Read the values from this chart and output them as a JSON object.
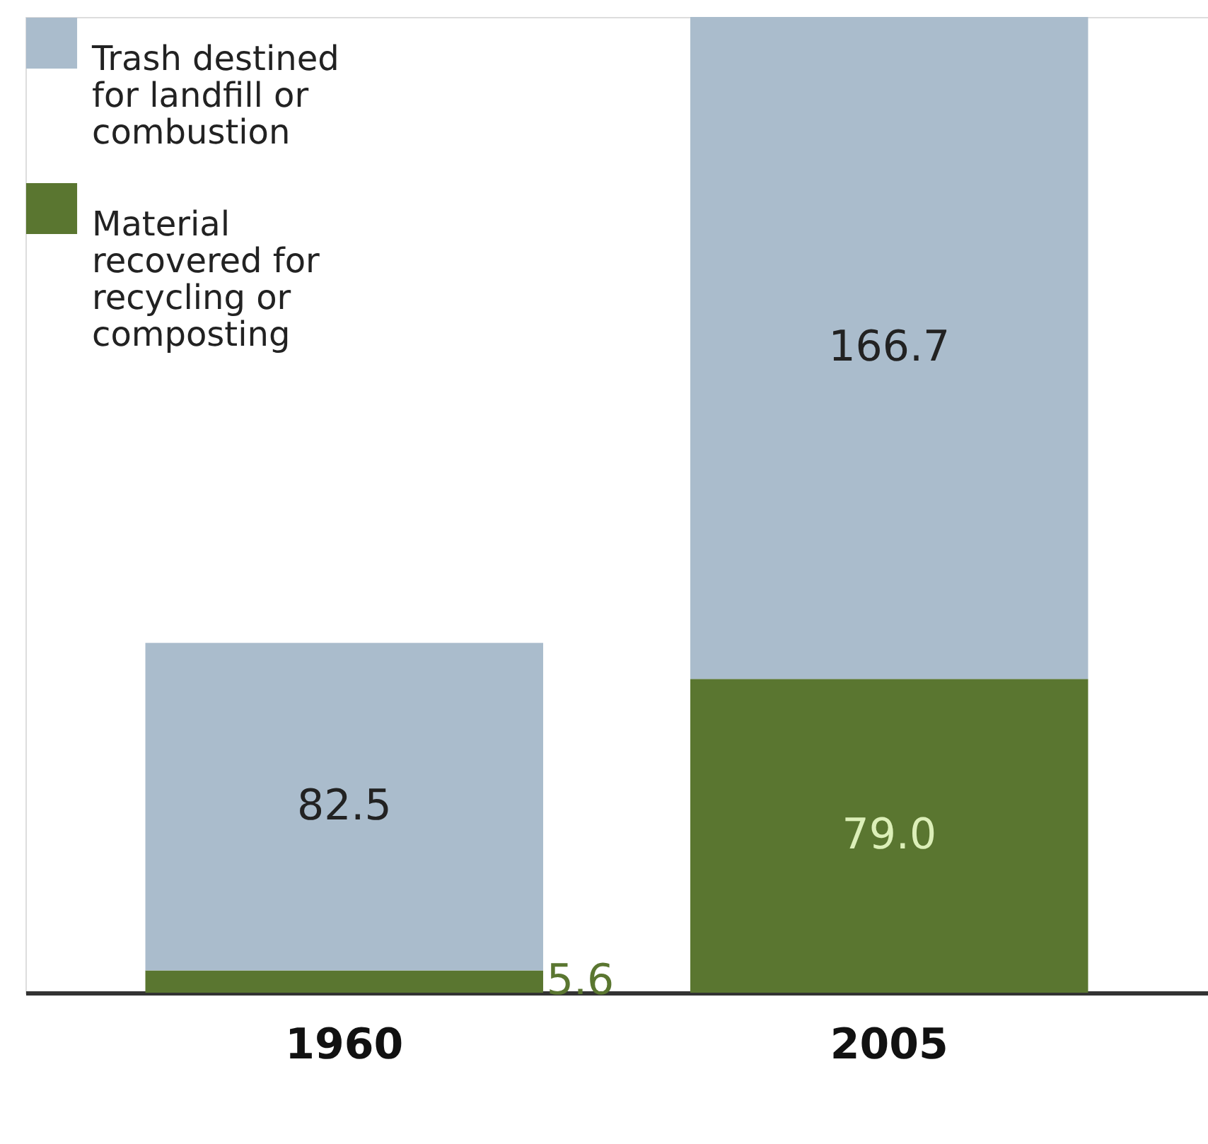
{
  "chart_data": {
    "type": "bar",
    "stacked": true,
    "categories": [
      "1960",
      "2005"
    ],
    "series": [
      {
        "name": "Material recovered for recycling or composting",
        "color": "#5a7630",
        "values": [
          5.6,
          79.0
        ],
        "value_labels": [
          "5.6",
          "79.0"
        ]
      },
      {
        "name": "Trash destined for landfill or combustion",
        "color": "#aabccc",
        "values": [
          82.5,
          166.7
        ],
        "value_labels": [
          "82.5",
          "166.7"
        ]
      }
    ],
    "legend": "top left",
    "grid": false,
    "tick_labels": "x"
  }
}
